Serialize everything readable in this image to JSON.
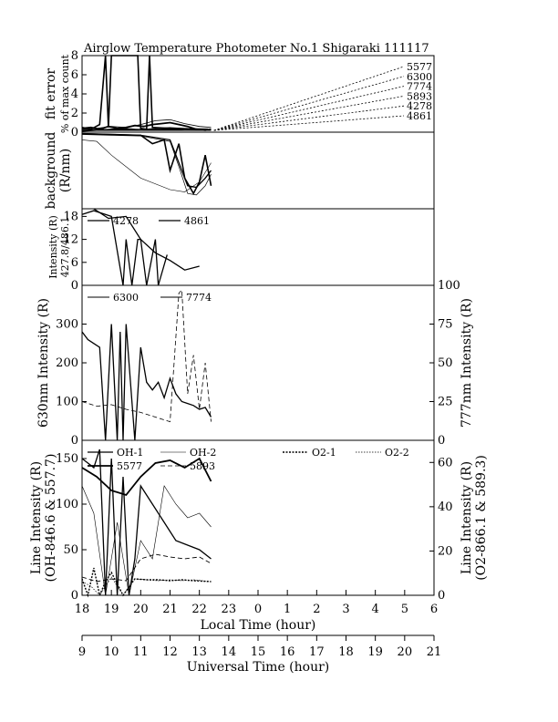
{
  "title": "Airglow Temperature Photometer No.1  Shigaraki   111117",
  "xaxis": {
    "local_label": "Local Time (hour)",
    "ut_label": "Universal Time (hour)",
    "local_range": [
      18,
      30
    ],
    "local_ticks": [
      "18",
      "19",
      "20",
      "21",
      "22",
      "23",
      "0",
      "1",
      "2",
      "3",
      "4",
      "5",
      "6"
    ],
    "ut_ticks": [
      "9",
      "10",
      "11",
      "12",
      "13",
      "14",
      "15",
      "16",
      "17",
      "18",
      "19",
      "20",
      "21"
    ]
  },
  "chart_data": [
    {
      "type": "line",
      "panel": "fit-error",
      "ylabel": "fit error",
      "ylabel2": "% of max count",
      "ylim": [
        0,
        8
      ],
      "yticks": [
        "0",
        "2",
        "4",
        "6",
        "8"
      ],
      "legend": [
        "5577",
        "6300",
        "7774",
        "5893",
        "4278",
        "4861"
      ],
      "series": [
        {
          "name": "5577",
          "x": [
            18.0,
            18.3,
            18.6,
            18.9,
            19.2,
            19.5,
            19.8,
            20.1,
            20.4,
            20.7,
            21.0,
            21.3,
            21.6,
            21.9,
            22.2,
            22.4
          ],
          "y": [
            0.4,
            0.5,
            0.3,
            0.6,
            0.4,
            0.5,
            0.7,
            0.6,
            0.8,
            0.9,
            1.0,
            0.8,
            0.6,
            0.3,
            0.2,
            0.3
          ]
        },
        {
          "name": "6300",
          "x": [
            18.0,
            18.3,
            18.6,
            18.8,
            18.9,
            19.0,
            19.2,
            19.4,
            19.5,
            19.7,
            19.9,
            20.0,
            20.2,
            20.3,
            20.4,
            21.0,
            22.3
          ],
          "y": [
            0.5,
            0.3,
            0.8,
            8.0,
            0.5,
            8.0,
            8.0,
            8.0,
            8.0,
            8.0,
            8.0,
            0.4,
            0.3,
            8.0,
            0.5,
            0.4,
            0.3
          ]
        },
        {
          "name": "7774",
          "x": [
            18.0,
            18.5,
            19.0,
            19.5,
            20.0,
            20.5,
            21.0,
            21.5,
            22.0,
            22.4
          ],
          "y": [
            0.3,
            0.4,
            0.6,
            0.5,
            0.8,
            1.2,
            1.3,
            0.9,
            0.6,
            0.5
          ]
        },
        {
          "name": "5893",
          "x": [
            18.0,
            18.5,
            19.0,
            19.5,
            20.0,
            20.5,
            21.0,
            21.5,
            22.0,
            22.4
          ],
          "y": [
            0.2,
            0.3,
            0.3,
            0.4,
            0.3,
            0.4,
            0.5,
            0.4,
            0.3,
            0.3
          ]
        },
        {
          "name": "4278",
          "x": [
            18.0,
            18.5,
            19.0,
            19.5,
            20.0,
            20.5,
            21.0,
            21.5,
            22.0,
            22.4
          ],
          "y": [
            0.2,
            0.2,
            0.3,
            0.3,
            0.2,
            0.3,
            0.3,
            0.2,
            0.2,
            0.2
          ]
        },
        {
          "name": "4861",
          "x": [
            18.0,
            18.5,
            19.0,
            19.5,
            20.0,
            20.5,
            21.0,
            21.5,
            22.0,
            22.4
          ],
          "y": [
            0.1,
            0.2,
            0.2,
            0.2,
            0.2,
            0.2,
            0.2,
            0.2,
            0.2,
            0.2
          ]
        }
      ]
    },
    {
      "type": "line",
      "panel": "background",
      "ylabel": "background",
      "ylabel2": "(R/nm)",
      "series": [
        {
          "name": "5577",
          "x": [
            18.0,
            19.0,
            20.0,
            20.4,
            20.8,
            21.0,
            21.3,
            21.5,
            21.8,
            22.0,
            22.2,
            22.4
          ],
          "y": [
            0.98,
            0.97,
            0.96,
            0.85,
            0.9,
            0.5,
            0.85,
            0.4,
            0.2,
            0.35,
            0.7,
            0.3
          ]
        },
        {
          "name": "6300",
          "x": [
            18.0,
            19.0,
            20.0,
            21.0,
            21.3,
            21.6,
            21.9,
            22.2,
            22.4
          ],
          "y": [
            0.98,
            0.97,
            0.96,
            0.9,
            0.6,
            0.3,
            0.28,
            0.4,
            0.5
          ]
        },
        {
          "name": "7774",
          "x": [
            18.0,
            19.0,
            20.0,
            21.0,
            21.3,
            21.6,
            21.9,
            22.2,
            22.4
          ],
          "y": [
            0.97,
            0.96,
            0.95,
            0.88,
            0.55,
            0.2,
            0.18,
            0.3,
            0.45
          ]
        },
        {
          "name": "5893",
          "x": [
            18.0,
            18.5,
            19.0,
            20.0,
            21.0,
            21.5,
            22.0,
            22.4
          ],
          "y": [
            0.9,
            0.88,
            0.7,
            0.4,
            0.25,
            0.22,
            0.35,
            0.6
          ]
        }
      ]
    },
    {
      "type": "line",
      "panel": "blue-intensity",
      "ylabel": "Intensity (R)",
      "ylabel2": "427.8/486.1",
      "ylim": [
        0,
        20
      ],
      "yticks": [
        "0",
        "6",
        "12",
        "18"
      ],
      "legend": [
        "4278",
        "4861"
      ],
      "series": [
        {
          "name": "4278",
          "x": [
            18.4,
            18.9,
            19.5,
            20.0,
            20.5,
            21.0,
            21.5,
            22.0
          ],
          "y": [
            20.0,
            17.5,
            18.0,
            12.0,
            8.5,
            6.5,
            4.0,
            5.0
          ]
        },
        {
          "name": "4861",
          "x": [
            18.0,
            18.4,
            19.0,
            19.4,
            19.5,
            19.7,
            19.9,
            20.0,
            20.2,
            20.5,
            20.6,
            20.9
          ],
          "y": [
            18.5,
            19.5,
            18.0,
            0.0,
            12.0,
            0.0,
            12.0,
            12.0,
            0.0,
            12.0,
            0.0,
            8.0
          ]
        }
      ]
    },
    {
      "type": "line",
      "panel": "red-intensity",
      "ylabel": "630nm Intensity (R)",
      "ylabel_right": "777nm Intensity (R)",
      "ylim": [
        0,
        400
      ],
      "ylim_right": [
        0,
        100
      ],
      "yticks": [
        "0",
        "100",
        "200",
        "300"
      ],
      "yticks_right": [
        "0",
        "25",
        "50",
        "75",
        "100"
      ],
      "legend": [
        "6300",
        "7774"
      ],
      "series": [
        {
          "name": "6300",
          "x": [
            18.0,
            18.2,
            18.4,
            18.6,
            18.8,
            19.0,
            19.2,
            19.3,
            19.4,
            19.5,
            19.6,
            19.8,
            20.0,
            20.2,
            20.4,
            20.6,
            20.8,
            21.0,
            21.2,
            21.4,
            21.6,
            21.8,
            22.0,
            22.2,
            22.4
          ],
          "y": [
            280,
            260,
            250,
            240,
            0,
            300,
            0,
            280,
            0,
            300,
            200,
            0,
            240,
            150,
            130,
            150,
            110,
            160,
            120,
            100,
            95,
            90,
            80,
            85,
            60
          ]
        },
        {
          "name": "7774",
          "x": [
            18.0,
            18.5,
            19.0,
            19.5,
            20.0,
            20.5,
            21.0,
            21.3,
            21.4,
            21.6,
            21.8,
            22.0,
            22.2,
            22.4
          ],
          "y": [
            25,
            22,
            23,
            20,
            18,
            15,
            12,
            95,
            97,
            30,
            55,
            20,
            50,
            12
          ]
        }
      ]
    },
    {
      "type": "line",
      "panel": "line-intensity",
      "ylabel": "Line Intensity (R)",
      "ylabel2": "(OH-846.6 & 557.7)",
      "ylabel_right": "Line Intensity (R)",
      "ylabel_right2": "(O2-866.1 & 589.3)",
      "ylim": [
        0,
        170
      ],
      "ylim_right": [
        0,
        70
      ],
      "yticks": [
        "0",
        "50",
        "100",
        "150"
      ],
      "yticks_right": [
        "0",
        "20",
        "40",
        "60"
      ],
      "legend": [
        "OH-1",
        "OH-2",
        "O2-1",
        "O2-2",
        "5577",
        "5893"
      ],
      "series": [
        {
          "name": "OH-1",
          "x": [
            18.0,
            18.4,
            18.6,
            18.8,
            19.0,
            19.2,
            19.4,
            19.6,
            19.8,
            20.0,
            20.4,
            20.8,
            21.2,
            21.6,
            22.0,
            22.4
          ],
          "y": [
            150,
            140,
            160,
            0,
            150,
            0,
            130,
            0,
            40,
            120,
            100,
            80,
            60,
            55,
            50,
            40
          ]
        },
        {
          "name": "OH-2",
          "x": [
            18.0,
            18.4,
            18.8,
            19.2,
            19.6,
            20.0,
            20.4,
            20.8,
            21.2,
            21.6,
            22.0,
            22.4
          ],
          "y": [
            120,
            90,
            0,
            80,
            0,
            60,
            40,
            120,
            100,
            85,
            90,
            75
          ]
        },
        {
          "name": "5577",
          "x": [
            18.0,
            18.5,
            19.0,
            19.5,
            20.0,
            20.5,
            21.0,
            21.5,
            22.0,
            22.4
          ],
          "y": [
            140,
            130,
            115,
            110,
            130,
            145,
            148,
            140,
            150,
            125
          ]
        },
        {
          "name": "5893",
          "x": [
            18.0,
            18.5,
            19.0,
            19.5,
            20.0,
            20.5,
            21.0,
            21.5,
            22.0,
            22.4
          ],
          "y": [
            20,
            15,
            18,
            16,
            40,
            45,
            42,
            40,
            42,
            35
          ]
        },
        {
          "name": "O2-1",
          "x": [
            18.0,
            18.2,
            18.4,
            18.6,
            18.8,
            19.0,
            19.4,
            19.8,
            20.2,
            20.6,
            21.0,
            21.4,
            21.8,
            22.4
          ],
          "y": [
            18,
            0,
            30,
            0,
            15,
            25,
            0,
            18,
            17,
            17,
            16,
            17,
            16,
            15
          ]
        },
        {
          "name": "O2-2",
          "x": [
            18.0,
            18.3,
            18.6,
            19.0,
            19.4,
            19.8,
            20.2,
            20.6,
            21.0,
            21.4,
            21.8,
            22.4
          ],
          "y": [
            15,
            10,
            0,
            20,
            0,
            18,
            17,
            16,
            17,
            16,
            17,
            15
          ]
        }
      ]
    }
  ]
}
